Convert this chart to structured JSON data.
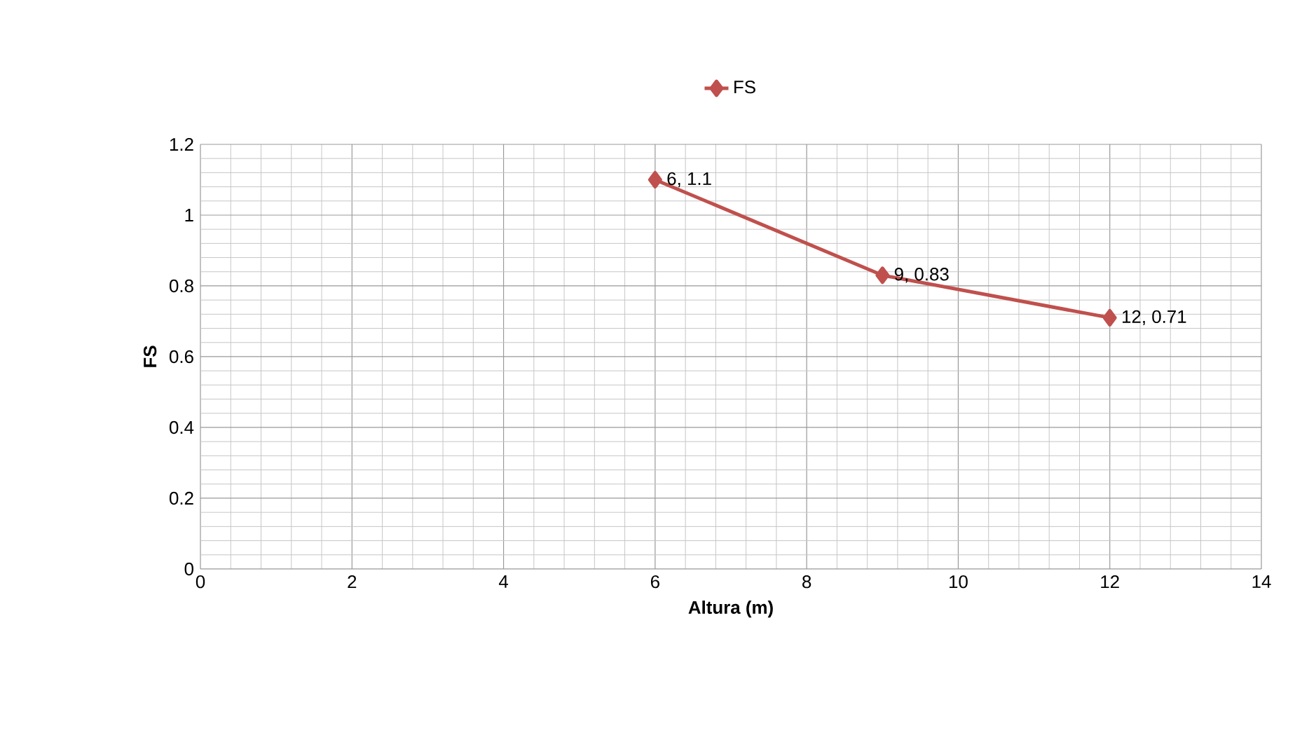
{
  "chart_data": {
    "type": "line",
    "xlabel": "Altura (m)",
    "ylabel": "FS",
    "xlim": [
      0,
      14
    ],
    "xticks": [
      0,
      2,
      4,
      6,
      8,
      10,
      12,
      14
    ],
    "ylim": [
      0,
      1.2
    ],
    "yticks": [
      0,
      0.2,
      0.4,
      0.6,
      0.8,
      1,
      1.2
    ],
    "grid": true,
    "legend": "top",
    "marker": "diamond",
    "line_style": "solid",
    "series": [
      {
        "name": "FS",
        "color": "#c0504d",
        "x": [
          6,
          9,
          12
        ],
        "values": [
          1.1,
          0.83,
          0.71
        ],
        "value_labels": [
          "6, 1.1",
          "9, 0.83",
          "12, 0.71"
        ]
      }
    ]
  }
}
